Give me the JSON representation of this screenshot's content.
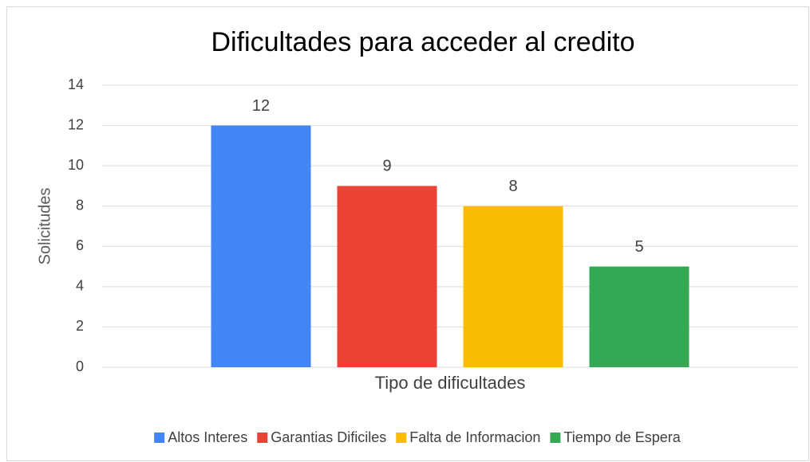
{
  "chart_data": {
    "type": "bar",
    "title": "Dificultades para acceder al credito",
    "categories": [
      "Tipo de dificultades"
    ],
    "y_label": "Solicitudes",
    "series": [
      {
        "name": "Altos Interes",
        "color": "#4285f4",
        "values": [
          12
        ]
      },
      {
        "name": "Garantias Dificiles",
        "color": "#ea4335",
        "values": [
          9
        ]
      },
      {
        "name": "Falta de Informacion",
        "color": "#fbbc04",
        "values": [
          8
        ]
      },
      {
        "name": "Tiempo de Espera",
        "color": "#34a853",
        "values": [
          5
        ]
      }
    ],
    "ylim": [
      0,
      14
    ],
    "yticks": [
      0,
      2,
      4,
      6,
      8,
      10,
      12,
      14
    ],
    "grid": true,
    "legend": "bottom",
    "data_labels": true
  }
}
